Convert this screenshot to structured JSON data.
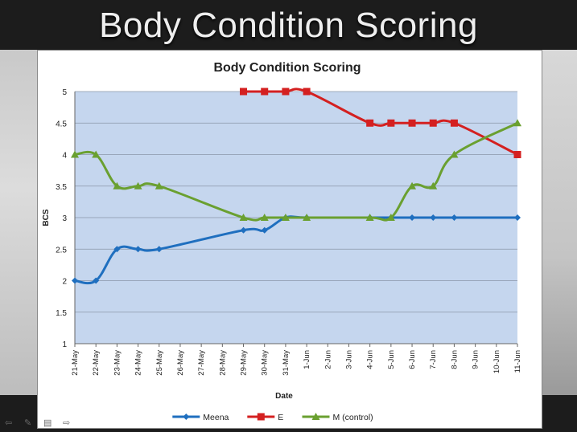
{
  "slide": {
    "title": "Body Condition Scoring"
  },
  "chart_data": {
    "type": "line",
    "title": "Body Condition Scoring",
    "xlabel": "Date",
    "ylabel": "BCS",
    "ylim": [
      1,
      5
    ],
    "yticks": [
      "1",
      "1.5",
      "2",
      "2.5",
      "3",
      "3.5",
      "4",
      "4.5",
      "5"
    ],
    "categories": [
      "21-May",
      "22-May",
      "23-May",
      "24-May",
      "25-May",
      "26-May",
      "27-May",
      "28-May",
      "29-May",
      "30-May",
      "31-May",
      "1-Jun",
      "2-Jun",
      "3-Jun",
      "4-Jun",
      "5-Jun",
      "6-Jun",
      "7-Jun",
      "8-Jun",
      "9-Jun",
      "10-Jun",
      "11-Jun"
    ],
    "grid": true,
    "legend_position": "bottom",
    "plot_background": "#c5d6ee",
    "series": [
      {
        "name": "Meena",
        "color": "#1f6fbf",
        "marker": "diamond",
        "points": [
          [
            "21-May",
            2
          ],
          [
            "22-May",
            2
          ],
          [
            "23-May",
            2.5
          ],
          [
            "24-May",
            2.5
          ],
          [
            "25-May",
            2.5
          ],
          [
            "29-May",
            2.8
          ],
          [
            "30-May",
            2.8
          ],
          [
            "31-May",
            3
          ],
          [
            "1-Jun",
            3
          ],
          [
            "4-Jun",
            3
          ],
          [
            "5-Jun",
            3
          ],
          [
            "6-Jun",
            3
          ],
          [
            "7-Jun",
            3
          ],
          [
            "8-Jun",
            3
          ],
          [
            "11-Jun",
            3
          ]
        ]
      },
      {
        "name": "E",
        "color": "#d42020",
        "marker": "square",
        "points": [
          [
            "29-May",
            5
          ],
          [
            "30-May",
            5
          ],
          [
            "31-May",
            5
          ],
          [
            "1-Jun",
            5
          ],
          [
            "4-Jun",
            4.5
          ],
          [
            "5-Jun",
            4.5
          ],
          [
            "6-Jun",
            4.5
          ],
          [
            "7-Jun",
            4.5
          ],
          [
            "8-Jun",
            4.5
          ],
          [
            "11-Jun",
            4
          ]
        ]
      },
      {
        "name": "M (control)",
        "color": "#6aa030",
        "marker": "triangle",
        "points": [
          [
            "21-May",
            4
          ],
          [
            "22-May",
            4
          ],
          [
            "23-May",
            3.5
          ],
          [
            "24-May",
            3.5
          ],
          [
            "25-May",
            3.5
          ],
          [
            "29-May",
            3
          ],
          [
            "30-May",
            3
          ],
          [
            "31-May",
            3
          ],
          [
            "1-Jun",
            3
          ],
          [
            "4-Jun",
            3
          ],
          [
            "5-Jun",
            3
          ],
          [
            "6-Jun",
            3.5
          ],
          [
            "7-Jun",
            3.5
          ],
          [
            "8-Jun",
            4
          ],
          [
            "11-Jun",
            4.5
          ]
        ]
      }
    ]
  }
}
